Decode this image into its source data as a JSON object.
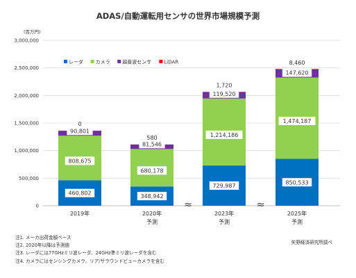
{
  "title": "ADAS/自動運転用センサの世界市場規模予測",
  "unit_label": "(百万円)",
  "chart_data": {
    "type": "bar",
    "stacked": true,
    "categories": [
      "2019年",
      "2020年\n予測",
      "2023年\n予測",
      "2025年\n予測"
    ],
    "series": [
      {
        "name": "レーダ",
        "color": "#0070C0",
        "values": [
          460802,
          348942,
          729987,
          850533
        ]
      },
      {
        "name": "カメラ",
        "color": "#92D050",
        "values": [
          808675,
          680178,
          1214186,
          1474187
        ]
      },
      {
        "name": "超音波センサ",
        "color": "#7030A0",
        "values": [
          90801,
          81546,
          119520,
          147620
        ]
      },
      {
        "name": "LiDAR",
        "color": "#FF0000",
        "values": [
          0,
          580,
          1720,
          8460
        ]
      }
    ],
    "ylim": [
      0,
      3000000
    ],
    "yticks": [
      "0",
      "500,000",
      "1,000,000",
      "1,500,000",
      "2,000,000",
      "2,500,000",
      "3,000,000"
    ],
    "ytick_values": [
      0,
      500000,
      1000000,
      1500000,
      2000000,
      2500000,
      3000000
    ],
    "data_labels": [
      [
        "460,802",
        "808,675",
        "90,801",
        "0"
      ],
      [
        "348,942",
        "680,178",
        "81,546",
        "580"
      ],
      [
        "729,987",
        "1,214,186",
        "119,520",
        "1,720"
      ],
      [
        "850,533",
        "1,474,187",
        "147,620",
        "8,460"
      ]
    ],
    "axis_breaks": [
      "2020年-2023年",
      "2023年-2025年"
    ],
    "axis_break_mark": "≈",
    "grid": true,
    "legend_position": "top-left"
  },
  "notes": [
    "注1. メーカ出荷金額ベース",
    "注2. 2020年以降は予測値",
    "注3. レーダには77GHzミリ波レーダ、24GHz準ミリ波レーダを含む",
    "注4. カメラにはセンシングカメラ、リア/サラウンドビューカメラを含む"
  ],
  "source": "矢野経済研究所調べ"
}
